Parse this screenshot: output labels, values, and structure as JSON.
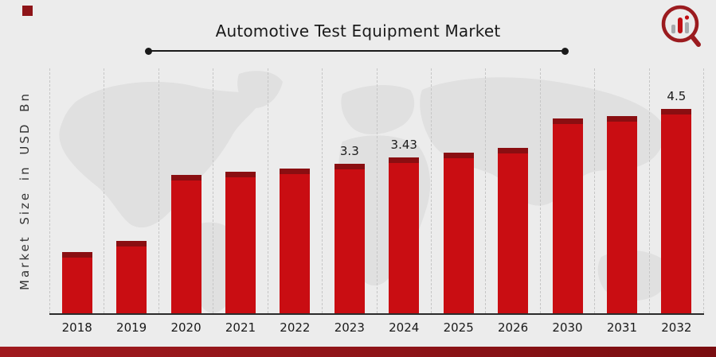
{
  "title": "Automotive Test Equipment Market",
  "branding": {
    "logo_icon": "bar-chart-magnifier-logo"
  },
  "colors": {
    "background": "#ececec",
    "map": "#e0e0e0",
    "bar": "#C90D12",
    "bar_cap": "#8A0E11",
    "bottom_strip": "#8E1418",
    "accent_square": "#8E1418",
    "title_rule": "#1a1a1a",
    "axis_line": "#2b2b2b",
    "grid_line": "#c6c6c6",
    "text": "#1a1a1a"
  },
  "chart_data": {
    "type": "bar",
    "title": "Automotive Test Equipment Market",
    "ylabel": "Market Size in USD Bn",
    "xlabel": "",
    "categories": [
      "2018",
      "2019",
      "2020",
      "2021",
      "2022",
      "2023",
      "2024",
      "2025",
      "2026",
      "2030",
      "2031",
      "2032"
    ],
    "values": [
      1.35,
      1.6,
      3.05,
      3.12,
      3.2,
      3.3,
      3.43,
      3.55,
      3.65,
      4.3,
      4.35,
      4.5
    ],
    "data_labels": [
      "",
      "",
      "",
      "",
      "",
      "3.3",
      "3.43",
      "",
      "",
      "",
      "",
      "4.5"
    ],
    "ylim": [
      0,
      5
    ],
    "grid": "vertical-dashed",
    "legend": "none",
    "bar_color": "#C90D12",
    "bar_cap_color": "#8A0E11"
  }
}
